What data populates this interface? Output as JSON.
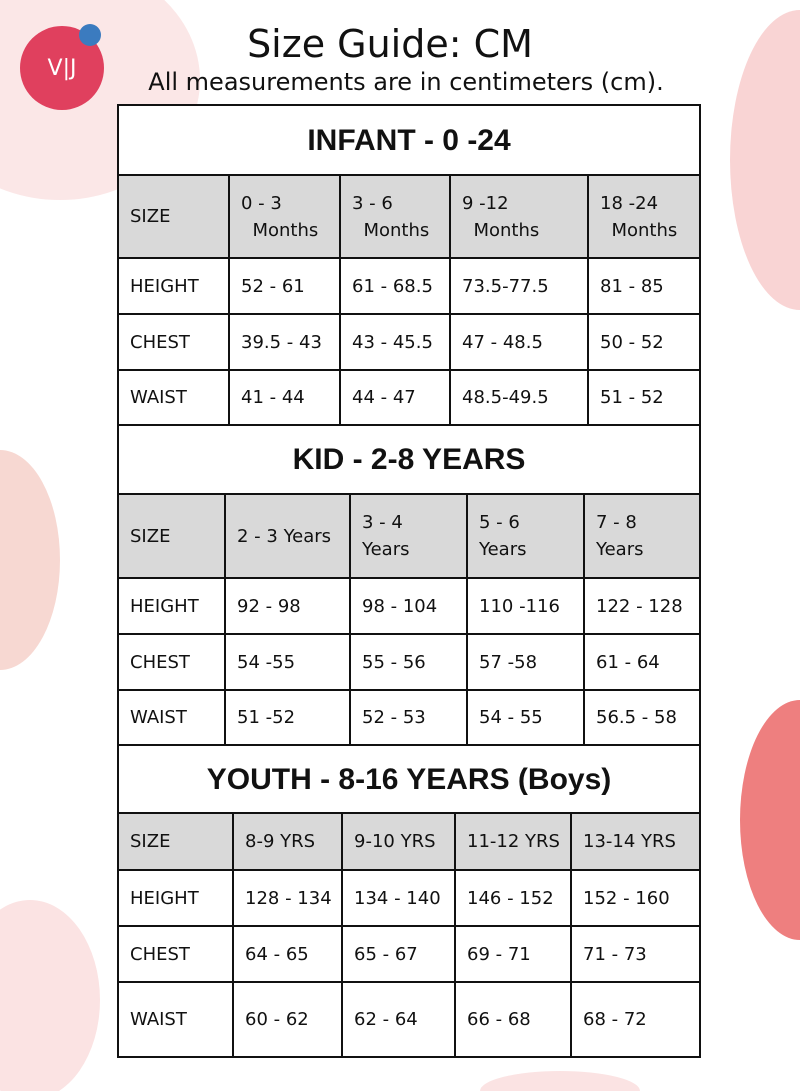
{
  "logo": "V|J",
  "title": "Size Guide: CM",
  "subtitle": "All measurements are in centimeters (cm).",
  "sections": [
    {
      "title": "INFANT - 0 -24",
      "header": [
        "SIZE",
        "0 - 3\n  Months",
        "3 - 6\n  Months",
        "9 -12\n  Months",
        "18 -24\n  Months"
      ],
      "rows": [
        [
          "HEIGHT",
          "52 - 61",
          "61 - 68.5",
          "73.5-77.5",
          "81 - 85"
        ],
        [
          "CHEST",
          "39.5 - 43",
          "43 - 45.5",
          "47 - 48.5",
          "50 - 52"
        ],
        [
          "WAIST",
          "41 - 44",
          "44 - 47",
          "48.5-49.5",
          "51 - 52"
        ]
      ]
    },
    {
      "title": "KID - 2-8 YEARS",
      "header": [
        "SIZE",
        "2 - 3 Years",
        "3 - 4\nYears",
        "5 - 6\nYears",
        "7 - 8\nYears"
      ],
      "rows": [
        [
          "HEIGHT",
          "92 - 98",
          "98 - 104",
          "110 -116",
          "122 - 128"
        ],
        [
          "CHEST",
          "54 -55",
          "55 - 56",
          "57 -58",
          "61 - 64"
        ],
        [
          "WAIST",
          "51 -52",
          "52 - 53",
          "54 - 55",
          "56.5 - 58"
        ]
      ]
    },
    {
      "title": "YOUTH - 8-16 YEARS (Boys)",
      "header": [
        "SIZE",
        "8-9 YRS",
        "9-10 YRS",
        "11-12 YRS",
        "13-14 YRS"
      ],
      "rows": [
        [
          "HEIGHT",
          "128 - 134",
          "134 - 140",
          "146 - 152",
          "152 - 160"
        ],
        [
          "CHEST",
          "64 - 65",
          "65 - 67",
          "69 - 71",
          "71 - 73"
        ],
        [
          "WAIST",
          "60 - 62",
          "62 - 64",
          "66 - 68",
          "68 - 72"
        ]
      ]
    }
  ]
}
